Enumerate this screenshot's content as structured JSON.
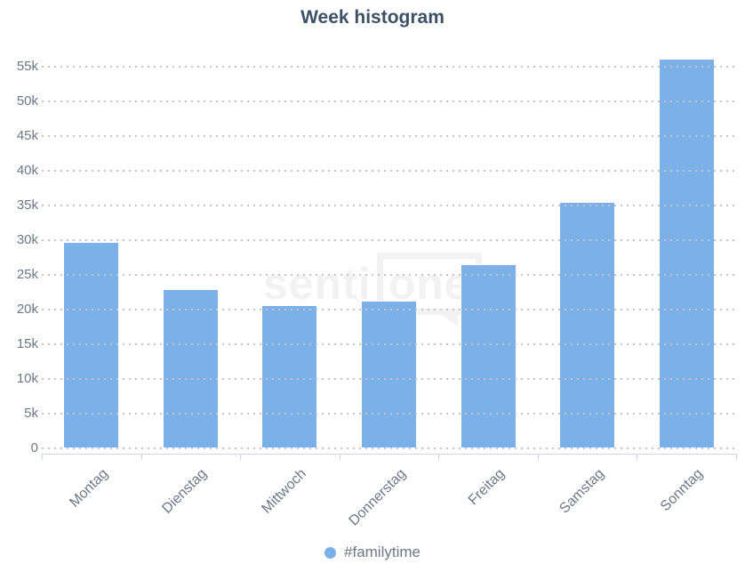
{
  "title": "Week histogram",
  "watermark": {
    "prefix": "senti",
    "boxed": "one"
  },
  "legend": {
    "label": "#familytime"
  },
  "colors": {
    "bar": "#7bb0e8",
    "title": "#3d5166",
    "axis-label": "#6d7787",
    "grid-dot": "#c4c4c4",
    "axis-line": "#ccd6eb",
    "watermark": "#f2f2f2",
    "legend-text": "#6d7787"
  },
  "chart_data": {
    "type": "bar",
    "title": "Week histogram",
    "categories": [
      "Montag",
      "Dienstag",
      "Mittwoch",
      "Donnerstag",
      "Freitag",
      "Samstag",
      "Sonntag"
    ],
    "series": [
      {
        "name": "#familytime",
        "values": [
          29800,
          23000,
          20600,
          21300,
          26500,
          35600,
          56200
        ]
      }
    ],
    "xlabel": "",
    "ylabel": "",
    "ylim": [
      0,
      58000
    ],
    "yticks": [
      {
        "value": 0,
        "label": "0"
      },
      {
        "value": 5000,
        "label": "5k"
      },
      {
        "value": 10000,
        "label": "10k"
      },
      {
        "value": 15000,
        "label": "15k"
      },
      {
        "value": 20000,
        "label": "20k"
      },
      {
        "value": 25000,
        "label": "25k"
      },
      {
        "value": 30000,
        "label": "30k"
      },
      {
        "value": 35000,
        "label": "35k"
      },
      {
        "value": 40000,
        "label": "40k"
      },
      {
        "value": 45000,
        "label": "45k"
      },
      {
        "value": 50000,
        "label": "50k"
      },
      {
        "value": 55000,
        "label": "55k"
      }
    ],
    "grid": "horizontal-dotted",
    "x_label_rotation": -45,
    "legend_position": "bottom-center"
  }
}
